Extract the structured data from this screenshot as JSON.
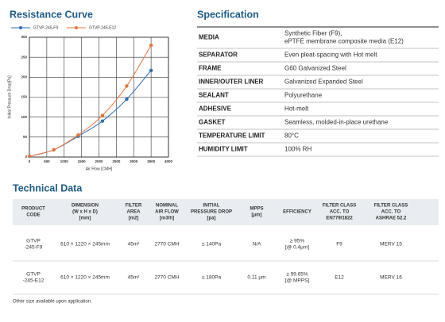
{
  "chart_data": {
    "type": "line",
    "title": "Resistance Curve",
    "x_label": "Air Flow [CMH]",
    "y_label": "Initial Pressure Drop[Pa]",
    "x": [
      0,
      700,
      1400,
      2100,
      2800,
      3500
    ],
    "series": [
      {
        "name": "GTVP-245-F9",
        "color": "#2f6eb5",
        "values": [
          2,
          18,
          52,
          90,
          145,
          217
        ]
      },
      {
        "name": "GTVP-245-E12",
        "color": "#e8743b",
        "values": [
          2,
          18,
          55,
          104,
          178,
          280
        ]
      }
    ],
    "xlim": [
      0,
      4000
    ],
    "xticks": [
      0,
      500,
      1000,
      1500,
      2000,
      2500,
      3000,
      3500,
      4000
    ],
    "ylim": [
      0,
      300
    ],
    "yticks": [
      0,
      50,
      100,
      150,
      200,
      250,
      300
    ],
    "grid": true
  },
  "specification": {
    "title": "Specification",
    "rows": [
      {
        "label": "MEDIA",
        "value": [
          "Synthetic Fiber (F9),",
          "ePTFE membrane composite media (E12)"
        ]
      },
      {
        "label": "SEPARATOR",
        "value": [
          "Even pleat-spacing with Hot melt"
        ]
      },
      {
        "label": "FRAME",
        "value": [
          "G60 Galvanized Steel"
        ]
      },
      {
        "label": "INNER/OUTER LINER",
        "value": [
          "Galvanized Expanded Steel"
        ]
      },
      {
        "label": "SEALANT",
        "value": [
          "Polyurethane"
        ]
      },
      {
        "label": "ADHESIVE",
        "value": [
          "Hot-melt"
        ]
      },
      {
        "label": "GASKET",
        "value": [
          "Seamless, molded-in-place urethane"
        ]
      },
      {
        "label": "TEMPERATURE LIMIT",
        "value": [
          "80°C"
        ]
      },
      {
        "label": "HUMIDITY LIMIT",
        "value": [
          "100% RH"
        ]
      }
    ]
  },
  "technical_data": {
    "title": "Technical Data",
    "headers": [
      [
        "PRODUCT",
        "CODE"
      ],
      [
        "DIMENSION",
        "(W x H x D)",
        "[mm]"
      ],
      [
        "FILTER",
        "AREA",
        "[m2]"
      ],
      [
        "NOMINAL",
        "AIR FLOW",
        "[m3/h]"
      ],
      [
        "INITIAL",
        "PRESSURE DROP",
        "[pa]"
      ],
      [
        "MPPS",
        "[μm]"
      ],
      [
        "EFFICIENCY"
      ],
      [
        "FILTER CLASS",
        "ACC. TO",
        "EN779/1822"
      ],
      [
        "FILTER CLASS",
        "ACC. TO",
        "ASHRAE 52.2"
      ]
    ],
    "rows": [
      [
        [
          "GTVP",
          "-245-F9"
        ],
        [
          "610 × 1220 × 245mm"
        ],
        [
          "45m²"
        ],
        [
          "2770 CMH"
        ],
        [
          "≤ 140Pa"
        ],
        [
          "N/A"
        ],
        [
          "≥ 95%",
          "[@ 0.4μm]"
        ],
        [
          "F9"
        ],
        [
          "MERV 15"
        ]
      ],
      [
        [
          "GTVP",
          "-245-E12"
        ],
        [
          "610 × 1220 × 245mm"
        ],
        [
          "45m²"
        ],
        [
          "2770 CMH"
        ],
        [
          "≤ 180Pa"
        ],
        [
          "0.11 μm"
        ],
        [
          "≥ 99.65%",
          "[@ MPPS]"
        ],
        [
          "E12"
        ],
        [
          "MERV 16"
        ]
      ]
    ]
  },
  "note": "Other size available upon application."
}
